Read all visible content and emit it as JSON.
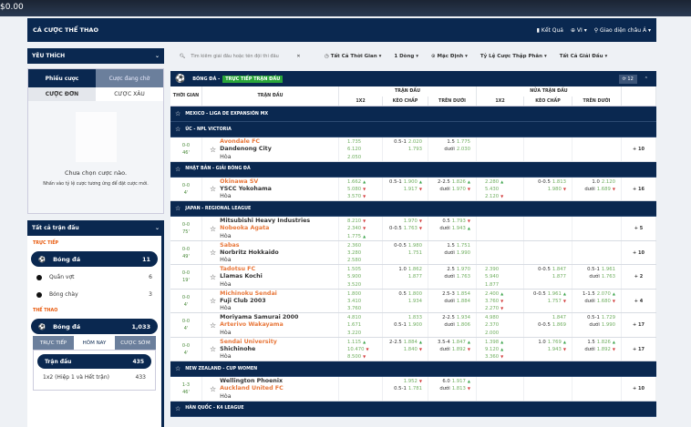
{
  "topbar": {
    "balance": "$0.00"
  },
  "header": {
    "title": "CÁ CƯỢC THỂ THAO",
    "results": "Kết Quả",
    "lang": "VI",
    "view": "Giao diện châu Á"
  },
  "left": {
    "favorites": "YÊU THÍCH",
    "slip_tabs": [
      "Phiếu cược",
      "Cược đang chờ"
    ],
    "slip_sub": [
      "CƯỢC ĐƠN",
      "CƯỢC XÂU"
    ],
    "empty_title": "Chưa chọn cược nào.",
    "empty_hint": "Nhấn vào tỷ lệ cược tương ứng để đặt cược mới.",
    "all_matches": "Tất cả trận đấu",
    "live_label": "TRỰC TIẾP",
    "live_items": [
      {
        "label": "Bóng đá",
        "count": "11"
      },
      {
        "label": "Quần vợt",
        "count": "6"
      },
      {
        "label": "Bóng chày",
        "count": "3"
      }
    ],
    "sports_label": "THỂ THAO",
    "sport": {
      "label": "Bóng đá",
      "count": "1,033"
    },
    "sport_tabs": [
      "TRỰC TIẾP",
      "HÔM NAY",
      "CƯỢC SỚM"
    ],
    "market": {
      "label": "Trận đấu",
      "count": "435"
    },
    "market_sub": {
      "label": "1x2 (Hiệp 1 và Hết trận)",
      "count": "433"
    }
  },
  "filters": {
    "search_placeholder": "Tìm kiếm giải đấu hoặc tên đội thi đấu",
    "time": "Tất Cả Thời Gian",
    "rows": "1 Dòng",
    "sort": "Mặc Định",
    "odds": "Tỷ Lệ Cược Thập Phân",
    "leagues": "Tất Cả Giải Đấu"
  },
  "section": {
    "sport": "BÓNG ĐÁ -",
    "live": "TRỰC TIẾP TRẬN ĐẤU",
    "refresh_count": "12"
  },
  "columns": {
    "time": "THỜI GIAN",
    "match": "TRẬN ĐẤU",
    "full": "TRẬN ĐẤU",
    "half": "NỬA TRẬN ĐẤU",
    "x12": "1X2",
    "hdp": "KÈO CHẤP",
    "ou": "TRÊN DƯỚI",
    "hx12": "1X2",
    "hhdp": "KÈO CHẤP",
    "hou": "TRÊN DƯỚI"
  },
  "draw_label": "Hòa",
  "under_label": "dưới",
  "rows": [
    {
      "league": "MEXICO - LIGA DE EXPANSIÓN MX"
    },
    {
      "league": "ÚC - NPL VICTORIA"
    },
    {
      "score": "0-0",
      "min": "46'",
      "home": "Avondale FC",
      "away": "Dandenong City",
      "fav": 0,
      "x12": [
        [
          "1.735",
          ""
        ],
        [
          "6.120",
          ""
        ],
        [
          "2.050",
          ""
        ]
      ],
      "hdp": {
        "line": "0.5-1",
        "a": [
          "2.020",
          ""
        ],
        "b": [
          "1.793",
          ""
        ]
      },
      "ou": {
        "line": "1.5",
        "a": [
          "1.775",
          ""
        ],
        "b": [
          "2.030",
          ""
        ]
      },
      "more": "+ 10"
    },
    {
      "league": "NHẬT BẢN - GIẢI BÓNG ĐÁ"
    },
    {
      "score": "0-0",
      "min": "4'",
      "home": "Okinawa SV",
      "away": "YSCC Yokohama",
      "fav": 0,
      "x12": [
        [
          "1.662",
          "u"
        ],
        [
          "5.080",
          "d"
        ],
        [
          "3.570",
          "d"
        ]
      ],
      "hdp": {
        "line": "0.5-1",
        "a": [
          "1.900",
          "u"
        ],
        "b": [
          "1.917",
          "d"
        ]
      },
      "ou": {
        "line": "2-2.5",
        "a": [
          "1.826",
          "u"
        ],
        "b": [
          "1.970",
          "d"
        ]
      },
      "hx12": [
        [
          "2.280",
          "u"
        ],
        [
          "5.430",
          ""
        ],
        [
          "2.120",
          "d"
        ]
      ],
      "hhdp": {
        "line": "0-0.5",
        "a": [
          "1.813",
          ""
        ],
        "b": [
          "1.980",
          "d"
        ]
      },
      "hou": {
        "line": "1.0",
        "a": [
          "2.120",
          ""
        ],
        "b": [
          "1.689",
          "d"
        ]
      },
      "more": "+ 16"
    },
    {
      "league": "JAPAN - REGIONAL LEAGUE"
    },
    {
      "score": "0-0",
      "min": "75'",
      "home": "Mitsubishi Heavy Industries",
      "away": "Nobeoka Agata",
      "fav": 1,
      "x12": [
        [
          "8.210",
          "d"
        ],
        [
          "2.340",
          "d"
        ],
        [
          "1.775",
          "u"
        ]
      ],
      "hdp": {
        "line": "0-0.5",
        "a": [
          "1.970",
          "d"
        ],
        "b": [
          "1.763",
          "d"
        ],
        "line_row": 1
      },
      "ou": {
        "line": "0.5",
        "a": [
          "1.793",
          "d"
        ],
        "b": [
          "1.943",
          "u"
        ]
      },
      "more": "+ 5"
    },
    {
      "score": "0-0",
      "min": "49'",
      "home": "Sabas",
      "away": "Norbritz Hokkaido",
      "fav": 0,
      "x12": [
        [
          "2.360",
          ""
        ],
        [
          "3.280",
          ""
        ],
        [
          "2.580",
          ""
        ]
      ],
      "hdp": {
        "line": "0-0.5",
        "a": [
          "1.980",
          ""
        ],
        "b": [
          "1.751",
          ""
        ]
      },
      "ou": {
        "line": "1.5",
        "a": [
          "1.751",
          ""
        ],
        "b": [
          "1.990",
          ""
        ]
      },
      "more": "+ 10"
    },
    {
      "score": "0-0",
      "min": "19'",
      "home": "Tadotsu FC",
      "away": "Llamas Kochi",
      "fav": 0,
      "x12": [
        [
          "1.505",
          ""
        ],
        [
          "5.900",
          ""
        ],
        [
          "3.520",
          ""
        ]
      ],
      "hdp": {
        "line": "1.0",
        "a": [
          "1.862",
          ""
        ],
        "b": [
          "1.877",
          ""
        ]
      },
      "ou": {
        "line": "2.5",
        "a": [
          "1.970",
          ""
        ],
        "b": [
          "1.763",
          ""
        ]
      },
      "hx12": [
        [
          "2.390",
          ""
        ],
        [
          "5.940",
          ""
        ],
        [
          "1.877",
          ""
        ]
      ],
      "hhdp": {
        "line": "0-0.5",
        "a": [
          "1.847",
          ""
        ],
        "b": [
          "1.877",
          ""
        ]
      },
      "hou": {
        "line": "0.5-1",
        "a": [
          "1.961",
          ""
        ],
        "b": [
          "1.763",
          ""
        ]
      },
      "more": "+ 2"
    },
    {
      "score": "0-0",
      "min": "4'",
      "home": "Michinoku Sendai",
      "away": "Fuji Club 2003",
      "fav": 0,
      "x12": [
        [
          "1.800",
          ""
        ],
        [
          "3.410",
          ""
        ],
        [
          "3.760",
          ""
        ]
      ],
      "hdp": {
        "line": "0.5",
        "a": [
          "1.800",
          ""
        ],
        "b": [
          "1.934",
          ""
        ]
      },
      "ou": {
        "line": "2.5-3",
        "a": [
          "1.854",
          ""
        ],
        "b": [
          "1.884",
          ""
        ]
      },
      "hx12": [
        [
          "2.400",
          "u"
        ],
        [
          "3.760",
          "d"
        ],
        [
          "2.270",
          "d"
        ]
      ],
      "hhdp": {
        "line": "0-0.5",
        "a": [
          "1.961",
          "u"
        ],
        "b": [
          "1.757",
          "d"
        ]
      },
      "hou": {
        "line": "1-1.5",
        "a": [
          "2.070",
          "u"
        ],
        "b": [
          "1.680",
          "d"
        ]
      },
      "more": "+ 4"
    },
    {
      "score": "0-0",
      "min": "4'",
      "home": "Moriyama Samurai 2000",
      "away": "Arterivo Wakayama",
      "fav": 1,
      "x12": [
        [
          "4.810",
          ""
        ],
        [
          "1.671",
          ""
        ],
        [
          "3.220",
          ""
        ]
      ],
      "hdp": {
        "line": "0.5-1",
        "a": [
          "1.833",
          ""
        ],
        "b": [
          "1.900",
          ""
        ],
        "line_row": 1
      },
      "ou": {
        "line": "2-2.5",
        "a": [
          "1.934",
          ""
        ],
        "b": [
          "1.806",
          ""
        ]
      },
      "hx12": [
        [
          "4.980",
          ""
        ],
        [
          "2.370",
          ""
        ],
        [
          "2.000",
          ""
        ]
      ],
      "hhdp": {
        "line": "0-0.5",
        "a": [
          "1.847",
          ""
        ],
        "b": [
          "1.869",
          ""
        ],
        "line_row": 1
      },
      "hou": {
        "line": "0.5-1",
        "a": [
          "1.729",
          ""
        ],
        "b": [
          "1.990",
          ""
        ]
      },
      "more": "+ 17"
    },
    {
      "score": "0-0",
      "min": "4'",
      "home": "Sendai University",
      "away": "Shichinohe",
      "fav": 0,
      "x12": [
        [
          "1.115",
          "u"
        ],
        [
          "10.470",
          "d"
        ],
        [
          "8.500",
          "d"
        ]
      ],
      "hdp": {
        "line": "2-2.5",
        "a": [
          "1.884",
          "u"
        ],
        "b": [
          "1.840",
          "d"
        ]
      },
      "ou": {
        "line": "3.5-4",
        "a": [
          "1.847",
          "u"
        ],
        "b": [
          "1.892",
          "d"
        ]
      },
      "hx12": [
        [
          "1.398",
          "u"
        ],
        [
          "9.120",
          "u"
        ],
        [
          "3.360",
          "d"
        ]
      ],
      "hhdp": {
        "line": "1.0",
        "a": [
          "1.769",
          "u"
        ],
        "b": [
          "1.943",
          "d"
        ]
      },
      "hou": {
        "line": "1.5",
        "a": [
          "1.826",
          "u"
        ],
        "b": [
          "1.892",
          "d"
        ]
      },
      "more": "+ 17"
    },
    {
      "league": "NEW ZEALAND - CUP WOMEN"
    },
    {
      "score": "1-3",
      "min": "46'",
      "home": "Wellington Phoenix",
      "away": "Auckland United FC",
      "fav": 1,
      "hdp": {
        "line": "0.5-1",
        "a": [
          "1.952",
          "d"
        ],
        "b": [
          "1.781",
          ""
        ],
        "line_row": 1
      },
      "ou": {
        "line": "6.0",
        "a": [
          "1.917",
          "u"
        ],
        "b": [
          "1.813",
          "d"
        ]
      },
      "more": "+ 10"
    },
    {
      "league": "HÀN QUỐC - K4 LEAGUE"
    }
  ],
  "colors": {
    "navy": "#0a2850",
    "fav": "#e8773a",
    "odds": "#6fae5f",
    "up": "#3aa34a",
    "down": "#d23b3b",
    "live": "#2aa63a"
  }
}
